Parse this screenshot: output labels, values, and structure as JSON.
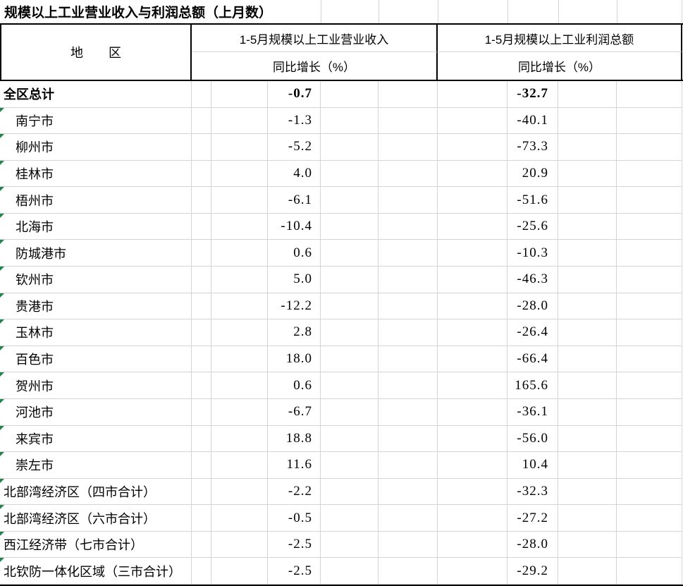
{
  "title": "规模以上工业营业收入与利润总额（上月数）",
  "header": {
    "region_label": "地　　区",
    "groups": [
      {
        "title": "1-5月规模以上工业营业收入",
        "subtitle": "同比增长（%）"
      },
      {
        "title": "1-5月规模以上工业利润总额",
        "subtitle": "同比增长（%）"
      }
    ]
  },
  "rows": [
    {
      "region": "全区总计",
      "revenue_growth": "-0.7",
      "profit_growth": "-32.7",
      "bold": true,
      "indent": false,
      "flag": false
    },
    {
      "region": "南宁市",
      "revenue_growth": "-1.3",
      "profit_growth": "-40.1",
      "bold": false,
      "indent": true,
      "flag": true
    },
    {
      "region": "柳州市",
      "revenue_growth": "-5.2",
      "profit_growth": "-73.3",
      "bold": false,
      "indent": true,
      "flag": true
    },
    {
      "region": "桂林市",
      "revenue_growth": "4.0",
      "profit_growth": "20.9",
      "bold": false,
      "indent": true,
      "flag": true
    },
    {
      "region": "梧州市",
      "revenue_growth": "-6.1",
      "profit_growth": "-51.6",
      "bold": false,
      "indent": true,
      "flag": true
    },
    {
      "region": "北海市",
      "revenue_growth": "-10.4",
      "profit_growth": "-25.6",
      "bold": false,
      "indent": true,
      "flag": true
    },
    {
      "region": "防城港市",
      "revenue_growth": "0.6",
      "profit_growth": "-10.3",
      "bold": false,
      "indent": true,
      "flag": true
    },
    {
      "region": "钦州市",
      "revenue_growth": "5.0",
      "profit_growth": "-46.3",
      "bold": false,
      "indent": true,
      "flag": true
    },
    {
      "region": "贵港市",
      "revenue_growth": "-12.2",
      "profit_growth": "-28.0",
      "bold": false,
      "indent": true,
      "flag": true
    },
    {
      "region": "玉林市",
      "revenue_growth": "2.8",
      "profit_growth": "-26.4",
      "bold": false,
      "indent": true,
      "flag": true
    },
    {
      "region": "百色市",
      "revenue_growth": "18.0",
      "profit_growth": "-66.4",
      "bold": false,
      "indent": true,
      "flag": true
    },
    {
      "region": "贺州市",
      "revenue_growth": "0.6",
      "profit_growth": "165.6",
      "bold": false,
      "indent": true,
      "flag": true
    },
    {
      "region": "河池市",
      "revenue_growth": "-6.7",
      "profit_growth": "-36.1",
      "bold": false,
      "indent": true,
      "flag": true
    },
    {
      "region": "来宾市",
      "revenue_growth": "18.8",
      "profit_growth": "-56.0",
      "bold": false,
      "indent": true,
      "flag": true
    },
    {
      "region": "崇左市",
      "revenue_growth": "11.6",
      "profit_growth": "10.4",
      "bold": false,
      "indent": true,
      "flag": true
    },
    {
      "region": "北部湾经济区（四市合计）",
      "revenue_growth": "-2.2",
      "profit_growth": "-32.3",
      "bold": false,
      "indent": false,
      "flag": true
    },
    {
      "region": "北部湾经济区（六市合计）",
      "revenue_growth": "-0.5",
      "profit_growth": "-27.2",
      "bold": false,
      "indent": false,
      "flag": true
    },
    {
      "region": "西江经济带（七市合计）",
      "revenue_growth": "-2.5",
      "profit_growth": "-28.0",
      "bold": false,
      "indent": false,
      "flag": true
    },
    {
      "region": "北钦防一体化区域（三市合计）",
      "revenue_growth": "-2.5",
      "profit_growth": "-29.2",
      "bold": false,
      "indent": false,
      "flag": true
    }
  ],
  "colors": {
    "background": "#ffffff",
    "text": "#000000",
    "gridline": "#d4d4d4",
    "border": "#000000",
    "flag_green": "#1e8449"
  }
}
